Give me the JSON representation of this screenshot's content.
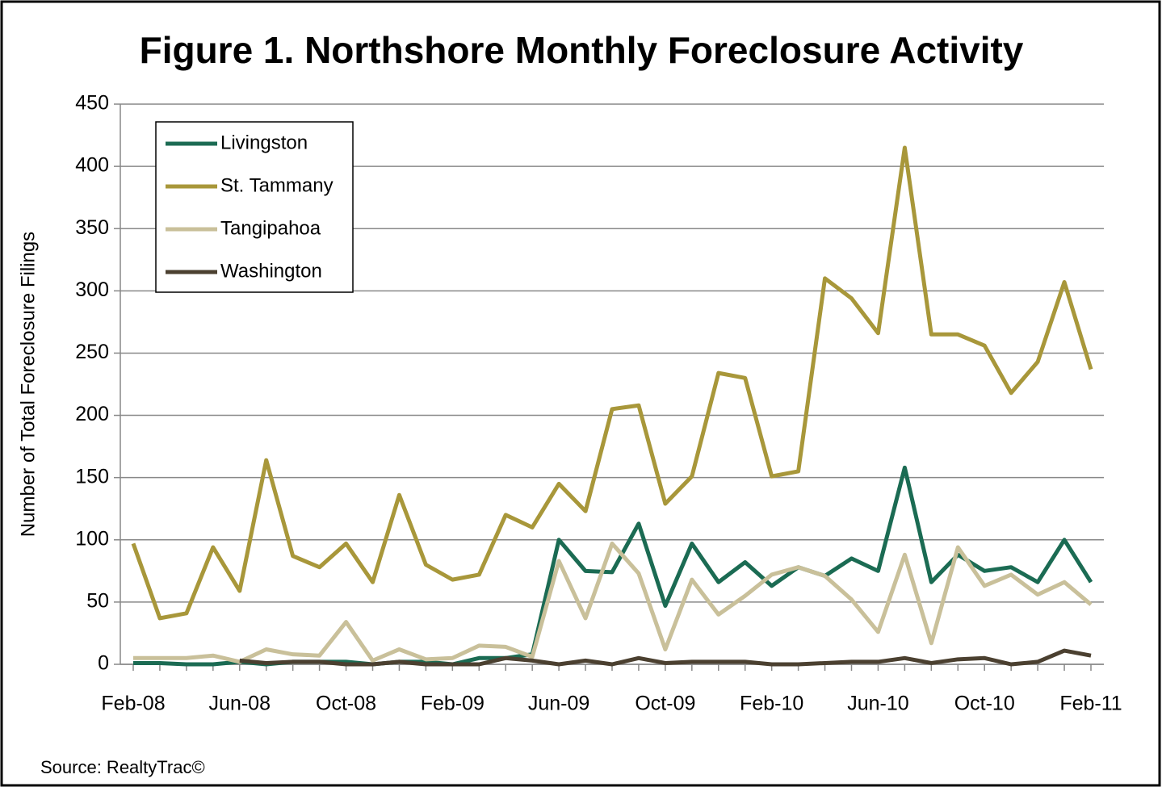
{
  "chart_data": {
    "type": "line",
    "title": "Figure 1. Northshore Monthly Foreclosure Activity",
    "y_label": "Number of Total Foreclosure Filings",
    "source": "Source: RealtyTrac©",
    "categories": [
      "Feb-08",
      null,
      null,
      null,
      "Jun-08",
      null,
      null,
      null,
      "Oct-08",
      null,
      null,
      null,
      "Feb-09",
      null,
      null,
      null,
      "Jun-09",
      null,
      null,
      null,
      "Oct-09",
      null,
      null,
      null,
      "Feb-10",
      null,
      null,
      null,
      "Jun-10",
      null,
      null,
      null,
      "Oct-10",
      null,
      null,
      null,
      "Feb-11"
    ],
    "series": [
      {
        "name": "Livingston",
        "color": "#1b6b53",
        "values": [
          1,
          1,
          0,
          0,
          2,
          0,
          2,
          2,
          2,
          0,
          2,
          2,
          0,
          5,
          5,
          8,
          100,
          75,
          74,
          113,
          47,
          97,
          66,
          82,
          63,
          78,
          71,
          85,
          75,
          158,
          66,
          88,
          75,
          78,
          66,
          100,
          66
        ]
      },
      {
        "name": "St. Tammany",
        "color": "#a8973a",
        "values": [
          97,
          37,
          41,
          94,
          59,
          164,
          87,
          78,
          97,
          66,
          136,
          80,
          68,
          72,
          120,
          110,
          145,
          123,
          205,
          208,
          129,
          151,
          234,
          230,
          151,
          155,
          310,
          294,
          266,
          415,
          265,
          265,
          256,
          218,
          243,
          307,
          237
        ]
      },
      {
        "name": "Tangipahoa",
        "color": "#c9c09a",
        "values": [
          5,
          5,
          5,
          7,
          2,
          12,
          8,
          7,
          34,
          3,
          12,
          4,
          5,
          15,
          14,
          6,
          83,
          37,
          97,
          73,
          12,
          68,
          40,
          55,
          72,
          78,
          71,
          52,
          26,
          88,
          17,
          94,
          63,
          72,
          56,
          66,
          48
        ]
      },
      {
        "name": "Washington",
        "color": "#4b4030",
        "values": [
          null,
          null,
          null,
          null,
          3,
          1,
          2,
          2,
          0,
          0,
          2,
          0,
          0,
          0,
          5,
          3,
          0,
          3,
          0,
          5,
          1,
          2,
          2,
          2,
          0,
          0,
          1,
          2,
          2,
          5,
          1,
          4,
          5,
          0,
          2,
          11,
          7
        ]
      }
    ],
    "ylim": [
      0,
      450
    ],
    "yticks": [
      0,
      50,
      100,
      150,
      200,
      250,
      300,
      350,
      400,
      450
    ],
    "grid": true,
    "legend": "upper left"
  }
}
